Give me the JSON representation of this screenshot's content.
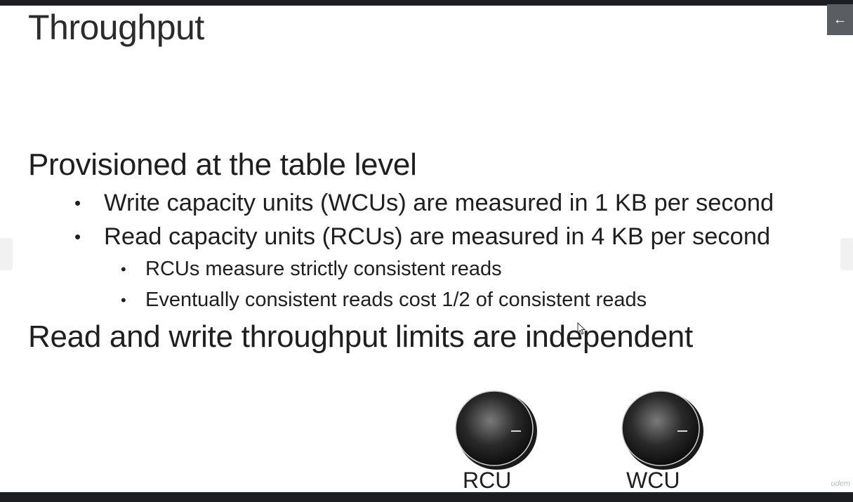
{
  "slide": {
    "title": "Throughput",
    "heading1": "Provisioned at the table level",
    "bullets": [
      "Write capacity units (WCUs) are measured in 1 KB per second",
      "Read capacity units (RCUs) are measured in 4 KB per second"
    ],
    "sub_bullets": [
      "RCUs measure strictly consistent reads",
      "Eventually consistent reads cost 1/2 of consistent reads"
    ],
    "heading2": "Read and write throughput limits are independent",
    "bullet_char": "•",
    "knobs": [
      {
        "label": "RCU"
      },
      {
        "label": "WCU"
      }
    ]
  },
  "controls": {
    "exit_icon": "arrow-left-icon",
    "exit_glyph": "←"
  },
  "watermark": "udem"
}
